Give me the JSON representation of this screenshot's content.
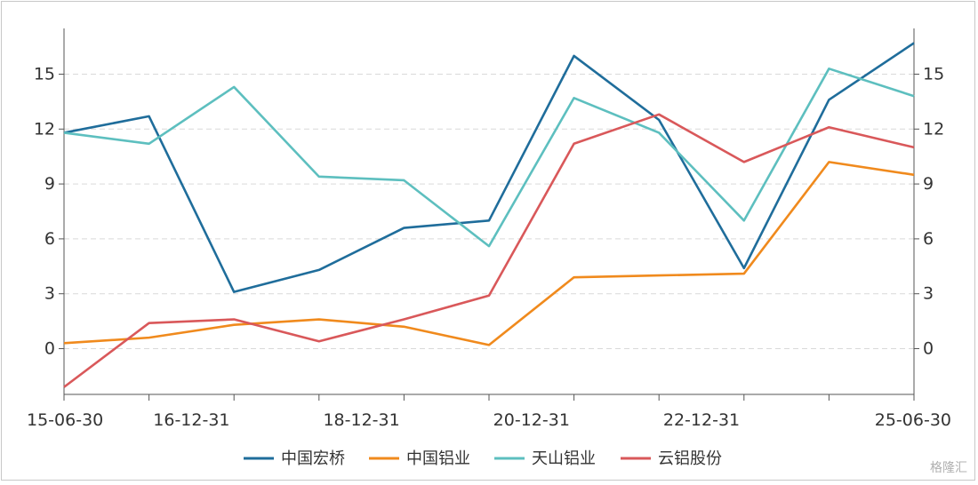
{
  "chart_data": {
    "type": "line",
    "title": "",
    "xlabel": "",
    "ylabel": "",
    "x_tick_labels": [
      "15-06-30",
      "16-12-31",
      "18-12-31",
      "20-12-31",
      "22-12-31",
      "25-06-30"
    ],
    "ylim": [
      -2.5,
      17.5
    ],
    "y_ticks": [
      0,
      3,
      6,
      9,
      12,
      15
    ],
    "grid": "horizontal dashed",
    "legend_position": "bottom",
    "series": [
      {
        "name": "中国宏桥",
        "color": "#1f6d9b",
        "values": [
          11.8,
          12.7,
          3.1,
          4.3,
          6.6,
          7.0,
          16.0,
          12.5,
          4.4,
          13.6,
          16.7
        ]
      },
      {
        "name": "中国铝业",
        "color": "#f08a1d",
        "values": [
          0.3,
          0.6,
          1.3,
          1.6,
          1.2,
          0.2,
          3.9,
          4.0,
          4.1,
          10.2,
          9.5
        ]
      },
      {
        "name": "天山铝业",
        "color": "#5dbfbf",
        "values": [
          11.8,
          11.2,
          14.3,
          9.4,
          9.2,
          5.6,
          13.7,
          11.8,
          7.0,
          15.3,
          13.8
        ]
      },
      {
        "name": "云铝股份",
        "color": "#d9585a",
        "values": [
          -2.1,
          1.4,
          1.6,
          0.4,
          1.6,
          2.9,
          11.2,
          12.8,
          10.2,
          12.1,
          11.0
        ]
      }
    ]
  },
  "watermark": "格隆汇"
}
